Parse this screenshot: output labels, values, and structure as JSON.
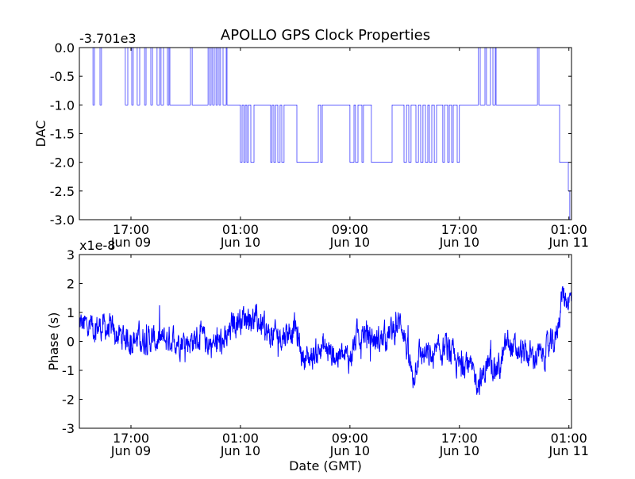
{
  "chart_data": [
    {
      "type": "line",
      "title": "APOLLO GPS Clock Properties",
      "ylabel": "DAC",
      "xlabel": "",
      "offset_label": "-3.701e3",
      "x_units": "hours since 17:00 Jun 09 (GMT)",
      "xlim": [
        -3.77,
        32.19
      ],
      "ylim": [
        -3.0,
        0.0
      ],
      "yticks": [
        0.0,
        -0.5,
        -1.0,
        -1.5,
        -2.0,
        -2.5,
        -3.0
      ],
      "ytick_labels": [
        "0.0",
        "-0.5",
        "-1.0",
        "-1.5",
        "-2.0",
        "-2.5",
        "-3.0"
      ],
      "xticks": [
        0,
        8,
        16,
        24,
        32
      ],
      "xtick_labels": [
        [
          "17:00",
          "Jun 09"
        ],
        [
          "01:00",
          "Jun 10"
        ],
        [
          "09:00",
          "Jun 10"
        ],
        [
          "17:00",
          "Jun 10"
        ],
        [
          "01:00",
          "Jun 11"
        ]
      ],
      "color": "#0000ff",
      "step_series": [
        [
          -3.77,
          0
        ],
        [
          -2.78,
          -1
        ],
        [
          -2.67,
          0
        ],
        [
          -2.26,
          -1
        ],
        [
          -2.15,
          0
        ],
        [
          -0.41,
          -1
        ],
        [
          -0.23,
          0
        ],
        [
          0.06,
          -1
        ],
        [
          0.17,
          0
        ],
        [
          0.46,
          -1
        ],
        [
          0.64,
          0
        ],
        [
          0.99,
          -1
        ],
        [
          1.1,
          0
        ],
        [
          1.45,
          -1
        ],
        [
          1.57,
          0
        ],
        [
          1.91,
          -1
        ],
        [
          2.09,
          0
        ],
        [
          2.2,
          -1
        ],
        [
          2.38,
          0
        ],
        [
          2.67,
          -1
        ],
        [
          2.78,
          0
        ],
        [
          2.84,
          -1
        ],
        [
          4.35,
          0
        ],
        [
          4.47,
          -1
        ],
        [
          5.63,
          0
        ],
        [
          5.74,
          -1
        ],
        [
          5.86,
          0
        ],
        [
          5.97,
          -1
        ],
        [
          6.09,
          0
        ],
        [
          6.21,
          -1
        ],
        [
          6.32,
          0
        ],
        [
          6.44,
          -1
        ],
        [
          6.55,
          0
        ],
        [
          6.73,
          -1
        ],
        [
          6.96,
          0
        ],
        [
          7.02,
          -1
        ],
        [
          8.0,
          -2
        ],
        [
          8.12,
          -1
        ],
        [
          8.24,
          -2
        ],
        [
          8.35,
          -1
        ],
        [
          8.47,
          -2
        ],
        [
          8.58,
          -1
        ],
        [
          8.76,
          -2
        ],
        [
          8.99,
          -1
        ],
        [
          10.21,
          -2
        ],
        [
          10.32,
          -1
        ],
        [
          10.44,
          -2
        ],
        [
          10.56,
          -1
        ],
        [
          10.73,
          -2
        ],
        [
          10.9,
          -1
        ],
        [
          11.02,
          -2
        ],
        [
          11.19,
          -1
        ],
        [
          12.12,
          -2
        ],
        [
          13.69,
          -1
        ],
        [
          13.86,
          -2
        ],
        [
          13.98,
          -1
        ],
        [
          16.0,
          -2
        ],
        [
          16.3,
          -1
        ],
        [
          16.41,
          -2
        ],
        [
          16.59,
          -1
        ],
        [
          16.88,
          -2
        ],
        [
          16.99,
          -1
        ],
        [
          17.57,
          -2
        ],
        [
          19.08,
          -1
        ],
        [
          19.95,
          -2
        ],
        [
          20.13,
          -1
        ],
        [
          20.3,
          -2
        ],
        [
          20.47,
          -1
        ],
        [
          20.82,
          -2
        ],
        [
          21.0,
          -1
        ],
        [
          21.17,
          -2
        ],
        [
          21.34,
          -1
        ],
        [
          21.52,
          -2
        ],
        [
          21.69,
          -1
        ],
        [
          21.81,
          -2
        ],
        [
          21.98,
          -1
        ],
        [
          22.16,
          -2
        ],
        [
          22.33,
          -1
        ],
        [
          22.79,
          -2
        ],
        [
          22.91,
          -1
        ],
        [
          23.14,
          -2
        ],
        [
          23.26,
          -1
        ],
        [
          23.43,
          -2
        ],
        [
          23.55,
          -1
        ],
        [
          23.84,
          -2
        ],
        [
          24.0,
          -1
        ],
        [
          25.39,
          0
        ],
        [
          25.52,
          -1
        ],
        [
          25.87,
          0
        ],
        [
          25.98,
          -1
        ],
        [
          26.27,
          0
        ],
        [
          26.45,
          -1
        ],
        [
          26.62,
          0
        ],
        [
          26.68,
          -1
        ],
        [
          29.7,
          0
        ],
        [
          29.81,
          -1
        ],
        [
          31.32,
          -2
        ],
        [
          31.96,
          -2.5
        ],
        [
          32.07,
          -3
        ],
        [
          32.19,
          -3
        ]
      ]
    },
    {
      "type": "line",
      "title": "",
      "ylabel": "Phase (s)",
      "xlabel": "Date (GMT)",
      "offset_label": "x1e-8",
      "x_units": "hours since 17:00 Jun 09 (GMT)",
      "y_units": "1e-8 s",
      "xlim": [
        -3.77,
        32.19
      ],
      "ylim": [
        -3,
        3
      ],
      "yticks": [
        3,
        2,
        1,
        0,
        -1,
        -2,
        -3
      ],
      "ytick_labels": [
        "3",
        "2",
        "1",
        "0",
        "-1",
        "-2",
        "-3"
      ],
      "xticks": [
        0,
        8,
        16,
        24,
        32
      ],
      "xtick_labels": [
        [
          "17:00",
          "Jun 09"
        ],
        [
          "01:00",
          "Jun 10"
        ],
        [
          "09:00",
          "Jun 10"
        ],
        [
          "17:00",
          "Jun 10"
        ],
        [
          "01:00",
          "Jun 11"
        ]
      ],
      "color": "#0000ff",
      "noise_amplitude": 0.45,
      "trend": [
        [
          -3.77,
          0.6
        ],
        [
          -3,
          0.5
        ],
        [
          -2,
          0.5
        ],
        [
          -1,
          0.2
        ],
        [
          0,
          0.1
        ],
        [
          1,
          0.1
        ],
        [
          2,
          0
        ],
        [
          3,
          0.1
        ],
        [
          4,
          0
        ],
        [
          5,
          0.1
        ],
        [
          6,
          -0.1
        ],
        [
          7,
          0
        ],
        [
          7.5,
          0.7
        ],
        [
          8.5,
          0.9
        ],
        [
          9.5,
          0.6
        ],
        [
          10,
          0.2
        ],
        [
          11,
          0.2
        ],
        [
          12,
          0.5
        ],
        [
          12.5,
          -0.5
        ],
        [
          13,
          -0.6
        ],
        [
          14,
          -0.2
        ],
        [
          15,
          -0.5
        ],
        [
          16,
          -0.6
        ],
        [
          16.5,
          0.2
        ],
        [
          17,
          0.3
        ],
        [
          18,
          0
        ],
        [
          19,
          0.3
        ],
        [
          19.8,
          0.7
        ],
        [
          20.2,
          -0.4
        ],
        [
          20.6,
          -1.3
        ],
        [
          21,
          -0.4
        ],
        [
          22,
          -0.6
        ],
        [
          23,
          -0.2
        ],
        [
          24,
          -0.9
        ],
        [
          24.5,
          -0.6
        ],
        [
          25,
          -1.2
        ],
        [
          25.6,
          -1.4
        ],
        [
          26,
          -0.8
        ],
        [
          27,
          -0.9
        ],
        [
          27.5,
          0
        ],
        [
          28,
          -0.3
        ],
        [
          29,
          -0.5
        ],
        [
          30,
          -0.5
        ],
        [
          31,
          0
        ],
        [
          31.5,
          1.6
        ],
        [
          32.19,
          1.4
        ]
      ]
    }
  ]
}
